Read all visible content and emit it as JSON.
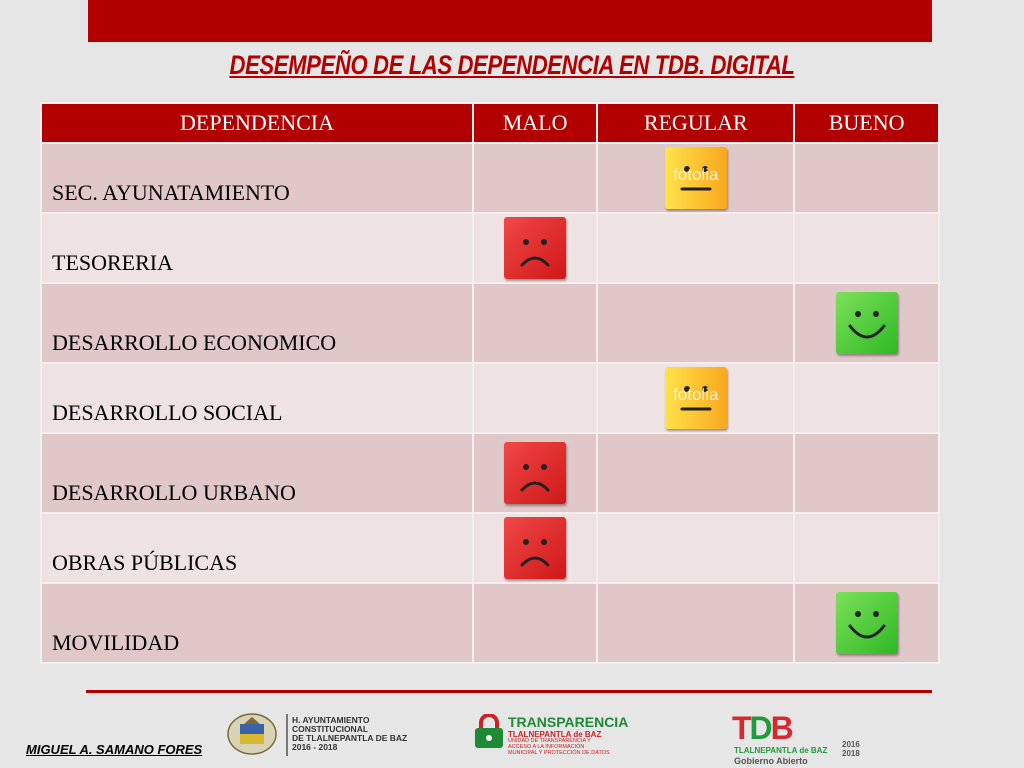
{
  "title": "DESEMPEÑO DE LAS DEPENDENCIA EN TDB. DIGITAL",
  "table": {
    "headers": [
      "DEPENDENCIA",
      "MALO",
      "REGULAR",
      "BUENO"
    ],
    "rows": [
      {
        "name": "SEC. AYUNATAMIENTO",
        "rating": "REGULAR"
      },
      {
        "name": "TESORERIA",
        "rating": "MALO"
      },
      {
        "name": "DESARROLLO ECONOMICO",
        "rating": "BUENO"
      },
      {
        "name": "DESARROLLO SOCIAL",
        "rating": "REGULAR"
      },
      {
        "name": "DESARROLLO URBANO",
        "rating": "MALO"
      },
      {
        "name": "OBRAS PÚBLICAS",
        "rating": "MALO"
      },
      {
        "name": "MOVILIDAD",
        "rating": "BUENO"
      }
    ]
  },
  "watermark": "fotolia",
  "footer": {
    "author": "MIGUEL A. SAMANO FORES",
    "logo1_text": [
      "H. AYUNTAMIENTO",
      "CONSTITUCIONAL",
      "DE TLALNEPANTLA DE BAZ",
      "2016 - 2018"
    ],
    "logo2_title": "TRANSPARENCIA",
    "logo2_sub": "TLALNEPANTLA de BAZ",
    "logo2_small": "UNIDAD DE TRANSPARENCIA Y ACCESO A LA INFORMACIÓN MUNICIPAL Y PROTECCIÓN DE DATOS",
    "logo3_letters": [
      "T",
      "D",
      "B"
    ],
    "logo3_sub": "TLALNEPANTLA de BAZ",
    "logo3_sub2": "Gobierno Abierto",
    "logo3_years": [
      "2016",
      "2018"
    ]
  },
  "colors": {
    "accent": "#b20000",
    "malo": "#e03030",
    "regular": "#f8c030",
    "bueno": "#3cc030"
  },
  "icons": {
    "malo": "sad-face-icon",
    "regular": "neutral-face-icon",
    "bueno": "happy-face-icon"
  }
}
